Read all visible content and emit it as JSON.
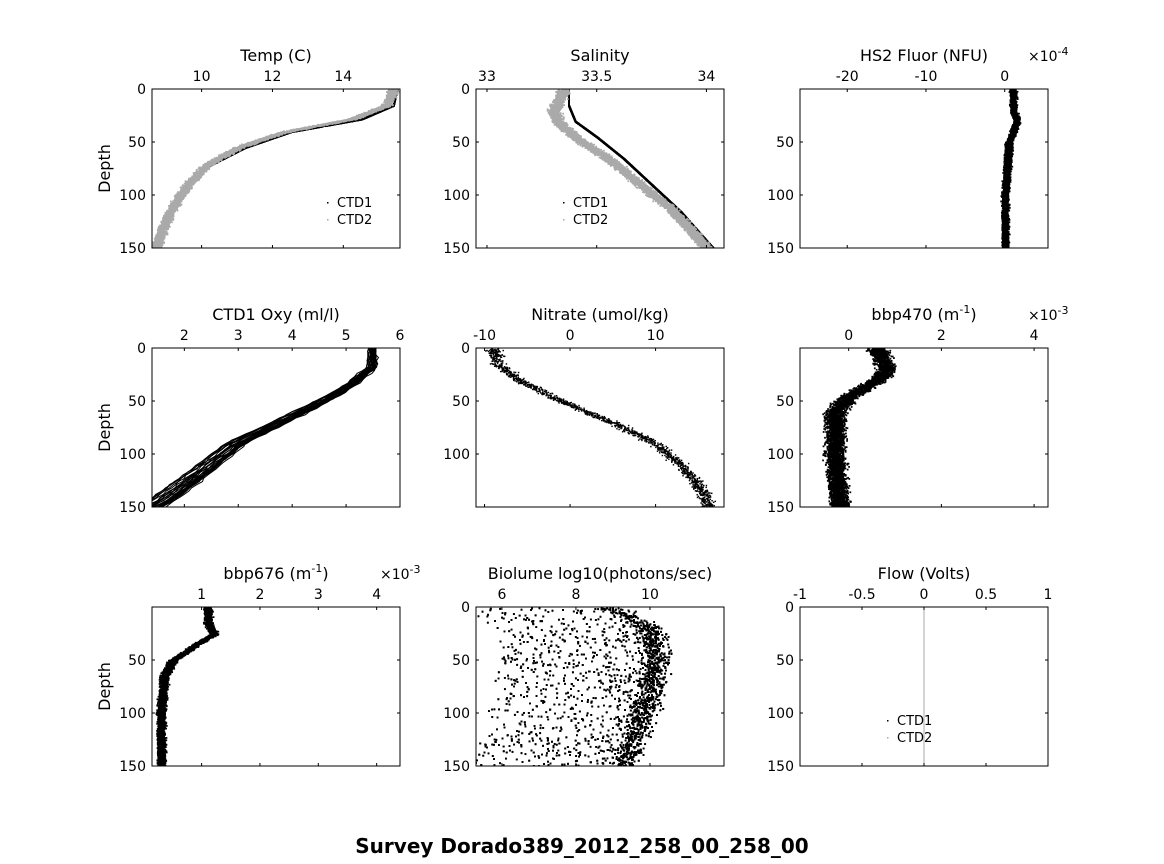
{
  "figure_title": "Survey Dorado389_2012_258_00_258_00",
  "chart_data": [
    {
      "type": "scatter",
      "title": "Temp (C)",
      "ylabel": "Depth",
      "xlim": [
        8.6,
        15.6
      ],
      "ylim": [
        0,
        150
      ],
      "xticks": [
        10,
        12,
        14
      ],
      "yticks": [
        0,
        50,
        100,
        150
      ],
      "grid": false,
      "legend": {
        "placement": "lower-right",
        "entries": [
          "CTD1",
          "CTD2"
        ]
      },
      "series": [
        {
          "color": "#000000",
          "profile": [
            [
              15.5,
              0
            ],
            [
              15.4,
              15
            ],
            [
              14.5,
              28
            ],
            [
              12.5,
              40
            ],
            [
              11.2,
              55
            ],
            [
              10.2,
              72
            ],
            [
              9.6,
              90
            ],
            [
              9.2,
              110
            ],
            [
              8.9,
              130
            ],
            [
              8.7,
              150
            ]
          ]
        },
        {
          "color": "#aaaaaa",
          "profile": [
            [
              15.4,
              0
            ],
            [
              15.2,
              15
            ],
            [
              14.2,
              28
            ],
            [
              12.3,
              40
            ],
            [
              11.0,
              55
            ],
            [
              10.1,
              72
            ],
            [
              9.6,
              90
            ],
            [
              9.2,
              110
            ],
            [
              8.9,
              130
            ],
            [
              8.7,
              150
            ]
          ],
          "style": "band",
          "spread": 0.2
        }
      ]
    },
    {
      "type": "scatter",
      "title": "Salinity",
      "ylabel": "",
      "xlim": [
        32.95,
        34.08
      ],
      "ylim": [
        0,
        150
      ],
      "xticks": [
        33,
        33.5,
        34
      ],
      "xticklabels": [
        "33",
        "33.5",
        "34"
      ],
      "yticks": [
        0,
        50,
        100,
        150
      ],
      "grid": false,
      "legend": {
        "placement": "lower-middle",
        "entries": [
          "CTD1",
          "CTD2"
        ]
      },
      "series": [
        {
          "color": "#000000",
          "profile": [
            [
              33.37,
              0
            ],
            [
              33.37,
              15
            ],
            [
              33.4,
              30
            ],
            [
              33.5,
              45
            ],
            [
              33.62,
              65
            ],
            [
              33.75,
              90
            ],
            [
              33.88,
              115
            ],
            [
              34.03,
              150
            ]
          ]
        },
        {
          "color": "#aaaaaa",
          "profile": [
            [
              33.35,
              0
            ],
            [
              33.3,
              20
            ],
            [
              33.32,
              30
            ],
            [
              33.4,
              45
            ],
            [
              33.55,
              65
            ],
            [
              33.7,
              90
            ],
            [
              33.85,
              115
            ],
            [
              34.0,
              150
            ]
          ],
          "style": "band",
          "spread": 0.04
        }
      ]
    },
    {
      "type": "scatter",
      "title": "HS2 Fluor (NFU)",
      "exponent": "×10^-4",
      "ylabel": "",
      "xlim": [
        -26,
        5.5
      ],
      "ylim": [
        0,
        150
      ],
      "xticks": [
        -20,
        -10,
        0
      ],
      "yticks": [
        50,
        100,
        150
      ],
      "grid": false,
      "series": [
        {
          "color": "#000000",
          "profile": [
            [
              1,
              0
            ],
            [
              1,
              20
            ],
            [
              1.5,
              30
            ],
            [
              0.5,
              50
            ],
            [
              0,
              100
            ],
            [
              0,
              150
            ]
          ],
          "style": "band",
          "spread": 0.6
        }
      ]
    },
    {
      "type": "line",
      "title": "CTD1 Oxy (ml/l)",
      "ylabel": "Depth",
      "xlim": [
        1.4,
        6.0
      ],
      "ylim": [
        0,
        150
      ],
      "xticks": [
        2,
        3,
        4,
        5,
        6
      ],
      "yticks": [
        0,
        50,
        100,
        150
      ],
      "grid": false,
      "series": [
        {
          "color": "#000000",
          "profile": [
            [
              5.5,
              0
            ],
            [
              5.5,
              18
            ],
            [
              5.1,
              35
            ],
            [
              4.6,
              50
            ],
            [
              3.8,
              70
            ],
            [
              3.0,
              90
            ],
            [
              2.5,
              110
            ],
            [
              2.0,
              130
            ],
            [
              1.6,
              145
            ],
            [
              1.4,
              150
            ]
          ],
          "style": "lines",
          "spread": 0.35
        }
      ]
    },
    {
      "type": "scatter",
      "title": "Nitrate (umol/kg)",
      "ylabel": "",
      "xlim": [
        -11,
        18
      ],
      "ylim": [
        0,
        150
      ],
      "xticks": [
        -10,
        0,
        10
      ],
      "yticks": [
        0,
        50,
        100
      ],
      "grid": false,
      "series": [
        {
          "color": "#000000",
          "profile": [
            [
              -9,
              0
            ],
            [
              -8.5,
              15
            ],
            [
              -6,
              30
            ],
            [
              -1,
              50
            ],
            [
              5,
              70
            ],
            [
              10,
              90
            ],
            [
              13,
              110
            ],
            [
              15,
              130
            ],
            [
              16,
              145
            ]
          ],
          "style": "sparse",
          "spread": 1.2
        }
      ]
    },
    {
      "type": "scatter",
      "title": "bbp470 (m^-1)",
      "exponent": "×10^-3",
      "ylabel": "",
      "xlim": [
        -1.05,
        4.3
      ],
      "ylim": [
        0,
        150
      ],
      "xticks": [
        0,
        2,
        4
      ],
      "yticks": [
        50,
        100,
        150
      ],
      "grid": false,
      "series": [
        {
          "color": "#000000",
          "profile": [
            [
              0.6,
              0
            ],
            [
              0.8,
              20
            ],
            [
              0.6,
              30
            ],
            [
              0,
              45
            ],
            [
              -0.3,
              60
            ],
            [
              -0.3,
              100
            ],
            [
              -0.2,
              150
            ]
          ],
          "style": "band",
          "spread": 0.3
        }
      ]
    },
    {
      "type": "scatter",
      "title": "bbp676 (m^-1)",
      "exponent": "×10^-3",
      "ylabel": "Depth",
      "xlim": [
        0.15,
        4.4
      ],
      "ylim": [
        0,
        150
      ],
      "xticks": [
        1,
        2,
        3,
        4
      ],
      "yticks": [
        50,
        100,
        150
      ],
      "grid": false,
      "series": [
        {
          "color": "#000000",
          "profile": [
            [
              1.1,
              0
            ],
            [
              1.1,
              15
            ],
            [
              1.2,
              25
            ],
            [
              0.9,
              35
            ],
            [
              0.5,
              50
            ],
            [
              0.35,
              65
            ],
            [
              0.3,
              100
            ],
            [
              0.3,
              150
            ]
          ],
          "style": "band",
          "spread": 0.1
        }
      ]
    },
    {
      "type": "scatter",
      "title": "Biolume log10(photons/sec)",
      "ylabel": "",
      "xlim": [
        5.3,
        12.0
      ],
      "ylim": [
        0,
        150
      ],
      "xticks": [
        6,
        8,
        10
      ],
      "yticks": [
        0,
        50,
        100,
        150
      ],
      "grid": false,
      "series": [
        {
          "color": "#000000",
          "profile": [
            [
              9.0,
              0
            ],
            [
              10,
              20
            ],
            [
              10.2,
              50
            ],
            [
              10.0,
              80
            ],
            [
              9.7,
              110
            ],
            [
              9.3,
              150
            ]
          ],
          "style": "cloud",
          "spread": 0.7
        }
      ]
    },
    {
      "type": "line",
      "title": "Flow (Volts)",
      "ylabel": "",
      "xlim": [
        -1,
        1
      ],
      "ylim": [
        0,
        150
      ],
      "xticks": [
        -1,
        -0.5,
        0,
        0.5,
        1
      ],
      "xticklabels": [
        "-1",
        "-0.5",
        "0",
        "0.5",
        "1"
      ],
      "yticks": [
        0,
        50,
        100,
        150
      ],
      "grid": false,
      "legend": {
        "placement": "lower-middle",
        "entries": [
          "CTD1",
          "CTD2"
        ]
      },
      "series": [
        {
          "color": "#aaaaaa",
          "profile": [
            [
              0,
              0
            ],
            [
              0,
              150
            ]
          ],
          "style": "line"
        }
      ]
    }
  ]
}
